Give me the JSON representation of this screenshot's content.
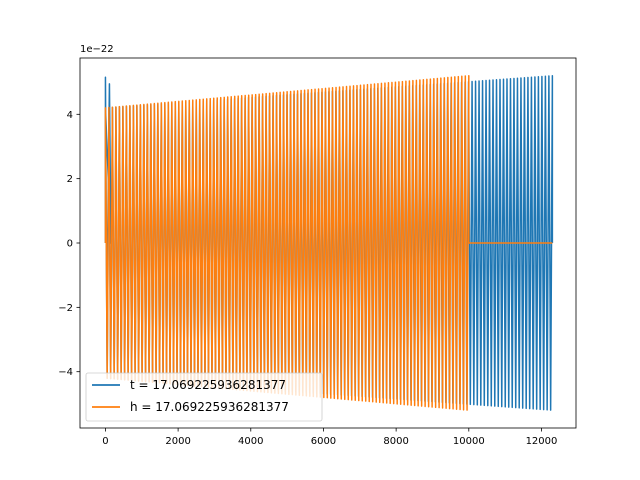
{
  "chart_data": {
    "type": "line",
    "title": "",
    "xlabel": "",
    "ylabel": "",
    "y_offset_label": "1e−22",
    "xlim": [
      -700,
      12950
    ],
    "ylim": [
      -5.75,
      5.75
    ],
    "x_ticks": [
      0,
      2000,
      4000,
      6000,
      8000,
      10000,
      12000
    ],
    "y_ticks": [
      -4,
      -2,
      0,
      2,
      4
    ],
    "grid": false,
    "legend": "lower-left",
    "series": [
      {
        "name": "t = 17.069225936281377",
        "color": "#1f77b4",
        "x_range": [
          0,
          12300
        ],
        "amplitude_start": 4.2,
        "amplitude_end": 5.2,
        "cycles": 128,
        "initial_spike": 5.15
      },
      {
        "name": "h = 17.069225936281377",
        "color": "#ff7f0e",
        "x_range": [
          0,
          10000
        ],
        "amplitude_start": 4.2,
        "amplitude_end": 5.2,
        "cycles": 104,
        "flat_after": [
          10000,
          12300
        ],
        "flat_value": 0
      }
    ]
  }
}
